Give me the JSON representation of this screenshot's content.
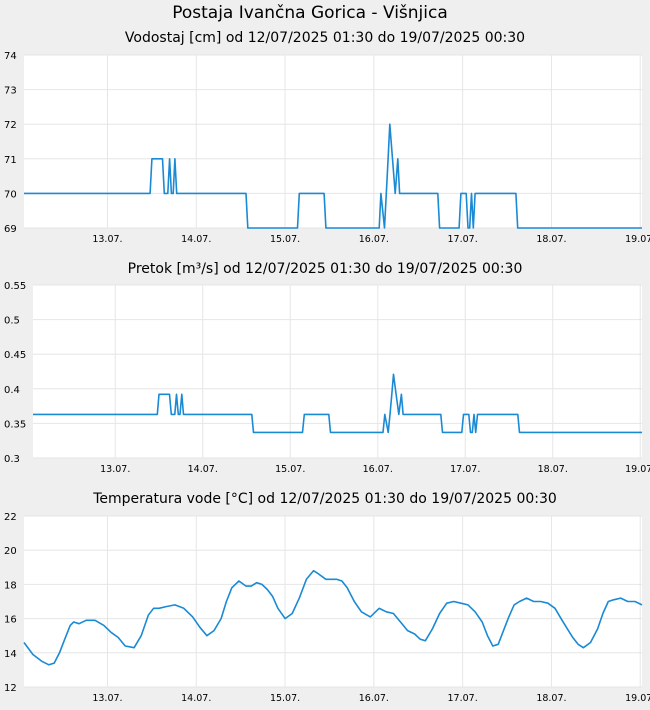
{
  "page": {
    "title": "Postaja Ivančna Gorica - Višnjica"
  },
  "colors": {
    "line": "#1a8ad4",
    "grid": "#e6e6e6",
    "plot_bg": "#ffffff",
    "page_bg": "#efefef"
  },
  "chart_data": [
    {
      "type": "line",
      "title": "Vodostaj [cm] od 12/07/2025 01:30 do 19/07/2025 00:30",
      "xlabel": "",
      "ylabel": "",
      "xlim": [
        0,
        6.96
      ],
      "ylim": [
        69,
        74
      ],
      "yticks": [
        "69",
        "70",
        "71",
        "72",
        "73",
        "74"
      ],
      "xticks": [
        {
          "label": "13.07.",
          "value": 0.94
        },
        {
          "label": "14.07.",
          "value": 1.94
        },
        {
          "label": "15.07.",
          "value": 2.94
        },
        {
          "label": "16.07.",
          "value": 3.94
        },
        {
          "label": "17.07.",
          "value": 4.94
        },
        {
          "label": "18.07.",
          "value": 5.94
        },
        {
          "label": "19.07.",
          "value": 6.94
        }
      ],
      "grid": true,
      "series": [
        {
          "x": [
            0,
            1.42,
            1.44,
            1.56,
            1.58,
            1.62,
            1.64,
            1.66,
            1.68,
            1.7,
            1.72,
            1.74,
            1.76,
            1.78,
            1.8,
            2.5,
            2.52,
            3.08,
            3.1,
            3.38,
            3.4,
            4.0,
            4.02,
            4.06,
            4.08,
            4.1,
            4.12,
            4.15,
            4.18,
            4.21,
            4.23,
            4.26,
            4.28,
            4.3,
            4.32,
            4.34,
            4.36,
            4.38,
            4.4,
            4.66,
            4.68,
            4.9,
            4.92,
            4.98,
            5.0,
            5.02,
            5.04,
            5.06,
            5.08,
            5.1,
            5.12,
            5.15,
            5.17,
            5.54,
            5.56,
            6.96
          ],
          "y": [
            70,
            70,
            71,
            71,
            70,
            70,
            71,
            70,
            70,
            71,
            70,
            70,
            70,
            70,
            70,
            70,
            69,
            69,
            70,
            70,
            69,
            69,
            70,
            69,
            70,
            71,
            72,
            71,
            70,
            71,
            70,
            70,
            70,
            70,
            70,
            70,
            70,
            70,
            70,
            70,
            69,
            69,
            70,
            70,
            69,
            69,
            70,
            69,
            70,
            70,
            70,
            70,
            70,
            70,
            69,
            69
          ]
        }
      ]
    },
    {
      "type": "line",
      "title": "Pretok [m³/s] od 12/07/2025 01:30 do 19/07/2025 00:30",
      "xlabel": "",
      "ylabel": "",
      "xlim": [
        0,
        6.96
      ],
      "ylim": [
        0.3,
        0.55
      ],
      "yticks": [
        "0.3",
        "0.35",
        "0.4",
        "0.45",
        "0.5",
        "0.55"
      ],
      "xticks": [
        {
          "label": "13.07.",
          "value": 0.94
        },
        {
          "label": "14.07.",
          "value": 1.94
        },
        {
          "label": "15.07.",
          "value": 2.94
        },
        {
          "label": "16.07.",
          "value": 3.94
        },
        {
          "label": "17.07.",
          "value": 4.94
        },
        {
          "label": "18.07.",
          "value": 5.94
        },
        {
          "label": "19.07.",
          "value": 6.94
        }
      ],
      "grid": true,
      "series": [
        {
          "x": [
            0,
            1.42,
            1.44,
            1.56,
            1.58,
            1.62,
            1.64,
            1.66,
            1.68,
            1.7,
            1.72,
            1.74,
            1.76,
            1.78,
            1.8,
            2.5,
            2.52,
            3.08,
            3.1,
            3.38,
            3.4,
            4.0,
            4.02,
            4.06,
            4.08,
            4.1,
            4.12,
            4.15,
            4.18,
            4.21,
            4.23,
            4.26,
            4.28,
            4.3,
            4.32,
            4.34,
            4.36,
            4.38,
            4.4,
            4.66,
            4.68,
            4.9,
            4.92,
            4.98,
            5.0,
            5.02,
            5.04,
            5.06,
            5.08,
            5.1,
            5.12,
            5.15,
            5.17,
            5.54,
            5.56,
            6.96
          ],
          "y": [
            0.363,
            0.363,
            0.392,
            0.392,
            0.363,
            0.363,
            0.392,
            0.363,
            0.363,
            0.392,
            0.363,
            0.363,
            0.363,
            0.363,
            0.363,
            0.363,
            0.337,
            0.337,
            0.363,
            0.363,
            0.337,
            0.337,
            0.363,
            0.337,
            0.363,
            0.392,
            0.421,
            0.392,
            0.363,
            0.392,
            0.363,
            0.363,
            0.363,
            0.363,
            0.363,
            0.363,
            0.363,
            0.363,
            0.363,
            0.363,
            0.337,
            0.337,
            0.363,
            0.363,
            0.337,
            0.337,
            0.363,
            0.337,
            0.363,
            0.363,
            0.363,
            0.363,
            0.363,
            0.363,
            0.337,
            0.337
          ]
        }
      ]
    },
    {
      "type": "line",
      "title": "Temperatura vode [°C] od 12/07/2025 01:30 do 19/07/2025 00:30",
      "xlabel": "",
      "ylabel": "",
      "xlim": [
        0,
        6.96
      ],
      "ylim": [
        12,
        22
      ],
      "yticks": [
        "12",
        "14",
        "16",
        "18",
        "20",
        "22"
      ],
      "xticks": [
        {
          "label": "13.07.",
          "value": 0.94
        },
        {
          "label": "14.07.",
          "value": 1.94
        },
        {
          "label": "15.07.",
          "value": 2.94
        },
        {
          "label": "16.07.",
          "value": 3.94
        },
        {
          "label": "17.07.",
          "value": 4.94
        },
        {
          "label": "18.07.",
          "value": 5.94
        },
        {
          "label": "19.07.",
          "value": 6.94
        }
      ],
      "grid": true,
      "series": [
        {
          "x": [
            0,
            0.1,
            0.2,
            0.28,
            0.34,
            0.4,
            0.46,
            0.52,
            0.56,
            0.62,
            0.7,
            0.8,
            0.9,
            0.98,
            1.06,
            1.14,
            1.24,
            1.32,
            1.4,
            1.46,
            1.52,
            1.6,
            1.7,
            1.8,
            1.9,
            1.98,
            2.06,
            2.14,
            2.22,
            2.28,
            2.34,
            2.42,
            2.5,
            2.56,
            2.62,
            2.68,
            2.74,
            2.8,
            2.86,
            2.94,
            3.02,
            3.1,
            3.18,
            3.26,
            3.32,
            3.4,
            3.46,
            3.52,
            3.58,
            3.64,
            3.72,
            3.8,
            3.9,
            4.0,
            4.08,
            4.16,
            4.24,
            4.32,
            4.4,
            4.46,
            4.52,
            4.6,
            4.68,
            4.76,
            4.84,
            4.92,
            5.0,
            5.08,
            5.16,
            5.22,
            5.28,
            5.34,
            5.4,
            5.46,
            5.52,
            5.58,
            5.66,
            5.74,
            5.82,
            5.9,
            5.98,
            6.06,
            6.12,
            6.18,
            6.24,
            6.3,
            6.38,
            6.46,
            6.52,
            6.58,
            6.64,
            6.72,
            6.8,
            6.88,
            6.96
          ],
          "y": [
            14.6,
            13.9,
            13.5,
            13.3,
            13.4,
            14.0,
            14.8,
            15.6,
            15.8,
            15.7,
            15.9,
            15.9,
            15.6,
            15.2,
            14.9,
            14.4,
            14.3,
            15.0,
            16.2,
            16.6,
            16.6,
            16.7,
            16.8,
            16.6,
            16.1,
            15.5,
            15.0,
            15.3,
            16.0,
            17.0,
            17.8,
            18.2,
            17.9,
            17.9,
            18.1,
            18.0,
            17.7,
            17.3,
            16.6,
            16.0,
            16.3,
            17.2,
            18.3,
            18.8,
            18.6,
            18.3,
            18.3,
            18.3,
            18.2,
            17.8,
            17.0,
            16.4,
            16.1,
            16.6,
            16.4,
            16.3,
            15.8,
            15.3,
            15.1,
            14.8,
            14.7,
            15.4,
            16.3,
            16.9,
            17.0,
            16.9,
            16.8,
            16.4,
            15.8,
            15.0,
            14.4,
            14.5,
            15.3,
            16.1,
            16.8,
            17.0,
            17.2,
            17.0,
            17.0,
            16.9,
            16.6,
            15.9,
            15.4,
            14.9,
            14.5,
            14.3,
            14.6,
            15.4,
            16.3,
            17.0,
            17.1,
            17.2,
            17.0,
            17.0,
            16.8
          ]
        }
      ]
    }
  ]
}
